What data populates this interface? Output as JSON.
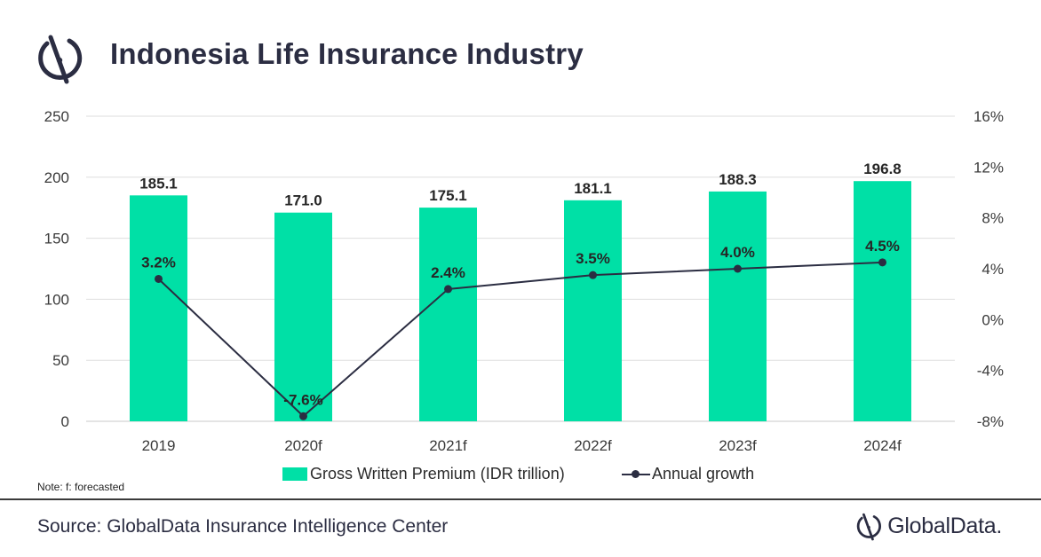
{
  "header": {
    "title": "Indonesia Life Insurance Industry",
    "logo_icon": "globaldata-mark-icon"
  },
  "chart_data": {
    "type": "bar",
    "title": "Indonesia Life Insurance Industry",
    "categories": [
      "2019",
      "2020f",
      "2021f",
      "2022f",
      "2023f",
      "2024f"
    ],
    "series": [
      {
        "name": "Gross Written Premium (IDR trillion)",
        "type": "bar",
        "axis": "left",
        "values": [
          185.1,
          171.0,
          175.1,
          181.1,
          188.3,
          196.8
        ],
        "labels": [
          "185.1",
          "171.0",
          "175.1",
          "181.1",
          "188.3",
          "196.8"
        ],
        "color": "#00e0a6"
      },
      {
        "name": "Annual growth",
        "type": "line",
        "axis": "right",
        "values": [
          3.2,
          -7.6,
          2.4,
          3.5,
          4.0,
          4.5
        ],
        "labels": [
          "3.2%",
          "-7.6%",
          "2.4%",
          "3.5%",
          "4.0%",
          "4.5%"
        ],
        "color": "#2b2d42"
      }
    ],
    "y_left": {
      "min": 0,
      "max": 250,
      "ticks": [
        "0",
        "50",
        "100",
        "150",
        "200",
        "250"
      ]
    },
    "y_right": {
      "min": -8,
      "max": 16,
      "ticks": [
        "-8%",
        "-4%",
        "0%",
        "4%",
        "8%",
        "12%",
        "16%"
      ]
    },
    "grid": true,
    "legend_position": "bottom"
  },
  "footer": {
    "note": "Note: f: forecasted",
    "source": "Source: GlobalData Insurance Intelligence Center",
    "brand": "GlobalData."
  }
}
